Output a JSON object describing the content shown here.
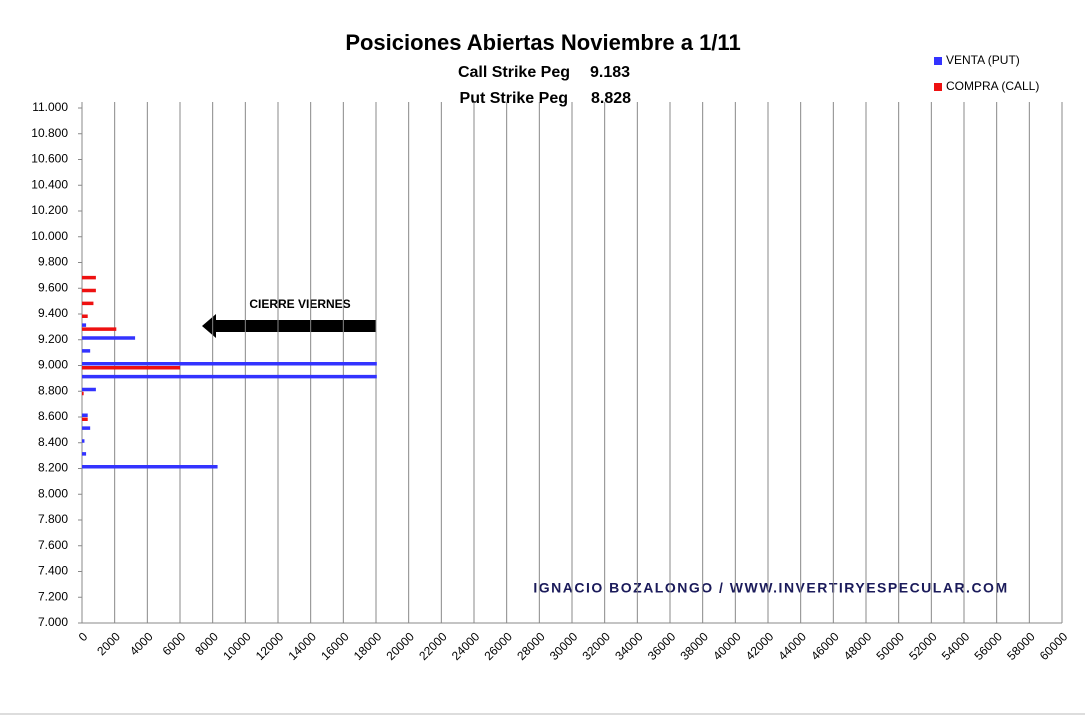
{
  "chart_data": {
    "type": "bar",
    "orientation": "horizontal",
    "title": "Posiciones Abiertas Noviembre a 1/11",
    "subtitle": [
      "Call Strike Peg",
      "9.183",
      "Put Strike Peg",
      "8.828"
    ],
    "annotations": [
      "CIERRE VIERNES",
      "IGNACIO  BOZALONGO / WWW.INVERTIRYESPECULAR.COM"
    ],
    "categories": [
      8200,
      8300,
      8400,
      8500,
      8600,
      8800,
      8900,
      9000,
      9100,
      9200,
      9300,
      9400,
      9500,
      9600,
      9700
    ],
    "series": [
      {
        "name": "VENTA (PUT)",
        "color": "#3333ff",
        "values": [
          8300,
          250,
          150,
          500,
          350,
          850,
          18050,
          18050,
          500,
          3250,
          250,
          0,
          0,
          0,
          0
        ]
      },
      {
        "name": "COMPRA (CALL)",
        "color": "#ee1111",
        "values": [
          0,
          0,
          0,
          0,
          350,
          100,
          0,
          6000,
          0,
          0,
          2100,
          350,
          700,
          850,
          850
        ]
      }
    ],
    "ylim": [
      7000,
      11000
    ],
    "yticks": [
      {
        "value": 7000,
        "label": "7.000"
      },
      {
        "value": 7200,
        "label": "7.200"
      },
      {
        "value": 7400,
        "label": "7.400"
      },
      {
        "value": 7600,
        "label": "7.600"
      },
      {
        "value": 7800,
        "label": "7.800"
      },
      {
        "value": 8000,
        "label": "8.000"
      },
      {
        "value": 8200,
        "label": "8.200"
      },
      {
        "value": 8400,
        "label": "8.400"
      },
      {
        "value": 8600,
        "label": "8.600"
      },
      {
        "value": 8800,
        "label": "8.800"
      },
      {
        "value": 9000,
        "label": "9.000"
      },
      {
        "value": 9200,
        "label": "9.200"
      },
      {
        "value": 9400,
        "label": "9.400"
      },
      {
        "value": 9600,
        "label": "9.600"
      },
      {
        "value": 9800,
        "label": "9.800"
      },
      {
        "value": 10000,
        "label": "10.000"
      },
      {
        "value": 10200,
        "label": "10.200"
      },
      {
        "value": 10400,
        "label": "10.400"
      },
      {
        "value": 10600,
        "label": "10.600"
      },
      {
        "value": 10800,
        "label": "10.800"
      },
      {
        "value": 11000,
        "label": "11.000"
      }
    ],
    "xlim": [
      0,
      60000
    ],
    "xticks": [
      0,
      2000,
      4000,
      6000,
      8000,
      10000,
      12000,
      14000,
      16000,
      18000,
      20000,
      22000,
      24000,
      26000,
      28000,
      30000,
      32000,
      34000,
      36000,
      38000,
      40000,
      42000,
      44000,
      46000,
      48000,
      50000,
      52000,
      54000,
      56000,
      58000,
      60000
    ],
    "grid": true,
    "legend": "upper right"
  }
}
